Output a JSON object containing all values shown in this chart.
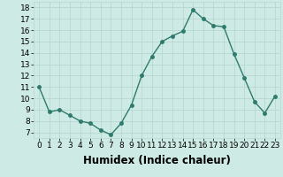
{
  "x": [
    0,
    1,
    2,
    3,
    4,
    5,
    6,
    7,
    8,
    9,
    10,
    11,
    12,
    13,
    14,
    15,
    16,
    17,
    18,
    19,
    20,
    21,
    22,
    23
  ],
  "y": [
    11,
    8.8,
    9.0,
    8.5,
    8.0,
    7.8,
    7.2,
    6.8,
    7.8,
    9.4,
    12.0,
    13.7,
    15.0,
    15.5,
    15.9,
    17.8,
    17.0,
    16.4,
    16.3,
    13.9,
    11.8,
    9.7,
    8.7,
    10.2
  ],
  "line_color": "#2e7b6e",
  "marker": "o",
  "markersize": 2.5,
  "linewidth": 1.0,
  "xlabel": "Humidex (Indice chaleur)",
  "ylim": [
    6.5,
    18.5
  ],
  "xlim": [
    -0.5,
    23.5
  ],
  "yticks": [
    7,
    8,
    9,
    10,
    11,
    12,
    13,
    14,
    15,
    16,
    17,
    18
  ],
  "xticks": [
    0,
    1,
    2,
    3,
    4,
    5,
    6,
    7,
    8,
    9,
    10,
    11,
    12,
    13,
    14,
    15,
    16,
    17,
    18,
    19,
    20,
    21,
    22,
    23
  ],
  "bg_color": "#ceeae4",
  "grid_color": "#b8d8d2",
  "tick_fontsize": 6.5,
  "xlabel_fontsize": 8.5
}
